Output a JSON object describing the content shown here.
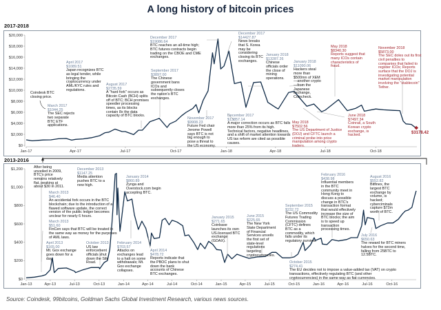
{
  "title": "A long history of bitcoin prices",
  "source": "Source: Coindesk, 99bitcoins, Goldman Sachs Global Investment Research, various news sources.",
  "colors": {
    "line": "#0f2a47",
    "annotation_title": "#6a7e99",
    "annotation_red": "#a3262e",
    "end_marker": "#a3262e"
  },
  "chart_data": [
    {
      "type": "line",
      "title": "2017-2018",
      "series_label": "Coindesk BTC closing price.",
      "ylim": [
        0,
        20000
      ],
      "yticks": [
        "$0",
        "$2,000",
        "$4,000",
        "$6,000",
        "$8,000",
        "$10,000",
        "$12,000",
        "$14,000",
        "$16,000",
        "$18,000",
        "$20,000"
      ],
      "ytick_values": [
        0,
        2000,
        4000,
        6000,
        8000,
        10000,
        12000,
        14000,
        16000,
        18000,
        20000
      ],
      "xticks": [
        "Jan-17",
        "Apr-17",
        "Jul-17",
        "Oct-17",
        "Jan-18",
        "Apr-18",
        "Jul-18",
        "Oct-18"
      ],
      "xtick_dates": [
        "2017-01-01",
        "2017-04-01",
        "2017-07-01",
        "2017-10-01",
        "2018-01-01",
        "2018-04-01",
        "2018-07-01",
        "2018-10-01"
      ],
      "xlim": [
        "2017-01-01",
        "2018-12-15"
      ],
      "grid": false,
      "end_label": "$3178.42",
      "points": [
        [
          "2017-01-01",
          998
        ],
        [
          "2017-01-12",
          820
        ],
        [
          "2017-02-01",
          970
        ],
        [
          "2017-02-15",
          1000
        ],
        [
          "2017-03-01",
          1200
        ],
        [
          "2017-03-15",
          1250
        ],
        [
          "2017-03-25",
          950
        ],
        [
          "2017-04-01",
          1090
        ],
        [
          "2017-04-15",
          1180
        ],
        [
          "2017-05-01",
          1400
        ],
        [
          "2017-05-15",
          1750
        ],
        [
          "2017-05-25",
          2300
        ],
        [
          "2017-06-01",
          2400
        ],
        [
          "2017-06-12",
          2950
        ],
        [
          "2017-06-25",
          2500
        ],
        [
          "2017-07-01",
          2500
        ],
        [
          "2017-07-16",
          1950
        ],
        [
          "2017-07-25",
          2750
        ],
        [
          "2017-08-01",
          2750
        ],
        [
          "2017-08-15",
          4300
        ],
        [
          "2017-09-01",
          4900
        ],
        [
          "2017-09-15",
          3250
        ],
        [
          "2017-09-20",
          3900
        ],
        [
          "2017-10-01",
          4400
        ],
        [
          "2017-10-12",
          5400
        ],
        [
          "2017-10-20",
          6000
        ],
        [
          "2017-11-01",
          6700
        ],
        [
          "2017-11-07",
          7400
        ],
        [
          "2017-11-12",
          5900
        ],
        [
          "2017-11-20",
          8200
        ],
        [
          "2017-11-29",
          9900
        ],
        [
          "2017-12-07",
          16800
        ],
        [
          "2017-12-10",
          14800
        ],
        [
          "2017-12-17",
          19300
        ],
        [
          "2017-12-22",
          13857
        ],
        [
          "2017-12-28",
          14400
        ],
        [
          "2018-01-06",
          17100
        ],
        [
          "2018-01-16",
          11200
        ],
        [
          "2018-01-28",
          11500
        ],
        [
          "2018-02-06",
          6900
        ],
        [
          "2018-02-20",
          11400
        ],
        [
          "2018-03-05",
          11500
        ],
        [
          "2018-03-18",
          7800
        ],
        [
          "2018-04-01",
          6900
        ],
        [
          "2018-04-06",
          6600
        ],
        [
          "2018-04-25",
          9600
        ],
        [
          "2018-05-05",
          9800
        ],
        [
          "2018-05-15",
          8600
        ],
        [
          "2018-05-28",
          7100
        ],
        [
          "2018-06-10",
          7500
        ],
        [
          "2018-06-24",
          6100
        ],
        [
          "2018-07-01",
          6400
        ],
        [
          "2018-07-25",
          8300
        ],
        [
          "2018-08-10",
          6300
        ],
        [
          "2018-08-25",
          6700
        ],
        [
          "2018-09-05",
          7300
        ],
        [
          "2018-09-10",
          6200
        ],
        [
          "2018-10-01",
          6600
        ],
        [
          "2018-10-15",
          6450
        ],
        [
          "2018-11-01",
          6350
        ],
        [
          "2018-11-14",
          6300
        ],
        [
          "2018-11-20",
          4400
        ],
        [
          "2018-11-25",
          3900
        ],
        [
          "2018-12-05",
          3800
        ],
        [
          "2018-12-10",
          3400
        ],
        [
          "2018-12-14",
          3178.42
        ]
      ],
      "annotations": [
        {
          "title": "March  2017",
          "price": "$1044.25",
          "text": "The SEC rejects two separate BTC ETF applications."
        },
        {
          "title": "April 2017",
          "price": "$1089.51",
          "text": "Japan recognizes BTC as legal tender, while bringing the cryptocurrency under AML/KYC rules and regulations."
        },
        {
          "title": "August 2017",
          "price": "$2735.59",
          "text": "A \"hard fork\" occurs as Bitcoin Cash (BCH) splits off of BTC; BCH promises speedier processing times, as its blocks contain 8x the data capacity of BTC blocks."
        },
        {
          "title": "September 2017",
          "price": "$3897.00",
          "text": "The Chinese government bans  ICOs and subsequently closes the nation's BTC exchanges."
        },
        {
          "title": "November 2017",
          "price": "$9908.23",
          "text": "Future Fed chair Jerome Powell says BTC is not big enough to pose a threat to the US economy."
        },
        {
          "title": "December 2017",
          "price": "$19086.64",
          "text": "BTC reaches an all-time high; BTC futures contracts begin trading on the CBOE and CME exchanges."
        },
        {
          "title": "December 2017",
          "price": "$14427.87",
          "text": "News breaks that S. Korea may be considering closing its BTC exchanges."
        },
        {
          "title": "December 2017",
          "price": "$13857.14",
          "text": "A major correction occurs as BTC falls more than 25% from its high. Technical factors, negative headlines, and a shift of market attention towards US tax reform are cited as possible causes."
        },
        {
          "title": "January 2018",
          "price": "$13287.26",
          "text": "Chinese officials order the close of mining operations."
        },
        {
          "title": "January 2018",
          "price": "$11090.06",
          "text": "Hackers steal more than $500mn of XEM—another crypto—from the Japanese exchange, Coincheck."
        },
        {
          "title": "May 2018",
          "price": "$8340.30",
          "text": "Reports suggest that many ICOs contain characteristics of fraud.",
          "red": true
        },
        {
          "title": "May 2018",
          "price": "$7502.56",
          "text": "The US Department of Justice (DOJ) and CFTC launch a criminal probe into price manipulation among crypto traders.",
          "red": true
        },
        {
          "title": "June 2018",
          "price": "$7497.34",
          "text": "Coinrail, a South Korean crypto exchange, is hacked.",
          "red": true
        },
        {
          "title": "November 2018",
          "price": "$5873.00",
          "text": "The SEC doles out its first civil penalties to companies that failed to register ICOs; Reports surface that the DOJ is investigating potential market manipulation involving the \"stablecoin\" Tether.",
          "red": true
        }
      ]
    },
    {
      "type": "line",
      "title": "2013-2016",
      "ylim": [
        0,
        1200
      ],
      "yticks": [
        "$0",
        "$200",
        "$400",
        "$600",
        "$800",
        "$1,000",
        "$1,200"
      ],
      "ytick_values": [
        0,
        200,
        400,
        600,
        800,
        1000,
        1200
      ],
      "xticks": [
        "Jan-13",
        "Apr-13",
        "Jul-13",
        "Oct-13",
        "Jan-14",
        "Apr-14",
        "Jul-14",
        "Oct-14",
        "Jan-15",
        "Apr-15",
        "Jul-15",
        "Oct-15",
        "Jan-16",
        "Apr-16",
        "Jul-16",
        "Oct-16"
      ],
      "xtick_dates": [
        "2013-01-01",
        "2013-04-01",
        "2013-07-01",
        "2013-10-01",
        "2014-01-01",
        "2014-04-01",
        "2014-07-01",
        "2014-10-01",
        "2015-01-01",
        "2015-04-01",
        "2015-07-01",
        "2015-10-01",
        "2016-01-01",
        "2016-04-01",
        "2016-07-01",
        "2016-10-01"
      ],
      "xlim": [
        "2013-01-01",
        "2016-12-31"
      ],
      "grid": false,
      "points": [
        [
          "2013-01-01",
          13
        ],
        [
          "2013-02-01",
          20
        ],
        [
          "2013-03-01",
          34
        ],
        [
          "2013-03-15",
          47
        ],
        [
          "2013-04-01",
          100
        ],
        [
          "2013-04-09",
          230
        ],
        [
          "2013-04-16",
          70
        ],
        [
          "2013-05-01",
          115
        ],
        [
          "2013-06-01",
          120
        ],
        [
          "2013-07-01",
          85
        ],
        [
          "2013-07-05",
          70
        ],
        [
          "2013-08-01",
          100
        ],
        [
          "2013-09-01",
          125
        ],
        [
          "2013-10-01",
          125
        ],
        [
          "2013-10-03",
          110
        ],
        [
          "2013-10-20",
          180
        ],
        [
          "2013-11-01",
          200
        ],
        [
          "2013-11-10",
          320
        ],
        [
          "2013-11-18",
          600
        ],
        [
          "2013-11-30",
          1140
        ],
        [
          "2013-12-05",
          1150
        ],
        [
          "2013-12-07",
          700
        ],
        [
          "2013-12-10",
          990
        ],
        [
          "2013-12-18",
          520
        ],
        [
          "2013-12-25",
          680
        ],
        [
          "2014-01-05",
          950
        ],
        [
          "2014-01-15",
          850
        ],
        [
          "2014-02-01",
          870
        ],
        [
          "2014-02-10",
          700
        ],
        [
          "2014-02-25",
          540
        ],
        [
          "2014-03-10",
          630
        ],
        [
          "2014-03-25",
          550
        ],
        [
          "2014-04-10",
          360
        ],
        [
          "2014-04-15",
          500
        ],
        [
          "2014-04-25",
          440
        ],
        [
          "2014-05-15",
          450
        ],
        [
          "2014-05-25",
          640
        ],
        [
          "2014-06-05",
          660
        ],
        [
          "2014-06-20",
          590
        ],
        [
          "2014-07-01",
          640
        ],
        [
          "2014-07-20",
          620
        ],
        [
          "2014-08-10",
          580
        ],
        [
          "2014-08-18",
          470
        ],
        [
          "2014-09-01",
          480
        ],
        [
          "2014-09-20",
          400
        ],
        [
          "2014-10-05",
          320
        ],
        [
          "2014-10-15",
          390
        ],
        [
          "2014-11-01",
          330
        ],
        [
          "2014-11-15",
          410
        ],
        [
          "2014-12-01",
          375
        ],
        [
          "2014-12-15",
          320
        ],
        [
          "2015-01-01",
          315
        ],
        [
          "2015-01-14",
          180
        ],
        [
          "2015-01-25",
          270
        ],
        [
          "2015-02-10",
          220
        ],
        [
          "2015-03-01",
          270
        ],
        [
          "2015-03-20",
          250
        ],
        [
          "2015-04-15",
          225
        ],
        [
          "2015-05-15",
          240
        ],
        [
          "2015-06-15",
          245
        ],
        [
          "2015-07-10",
          290
        ],
        [
          "2015-07-25",
          290
        ],
        [
          "2015-08-18",
          230
        ],
        [
          "2015-09-15",
          230
        ],
        [
          "2015-10-01",
          240
        ],
        [
          "2015-10-15",
          270
        ],
        [
          "2015-11-04",
          400
        ],
        [
          "2015-11-11",
          310
        ],
        [
          "2015-12-01",
          370
        ],
        [
          "2015-12-15",
          450
        ],
        [
          "2015-12-20",
          420
        ],
        [
          "2016-01-10",
          445
        ],
        [
          "2016-01-15",
          380
        ],
        [
          "2016-02-01",
          375
        ],
        [
          "2016-02-20",
          430
        ],
        [
          "2016-03-15",
          415
        ],
        [
          "2016-04-15",
          430
        ],
        [
          "2016-05-01",
          450
        ],
        [
          "2016-05-25",
          450
        ],
        [
          "2016-06-10",
          580
        ],
        [
          "2016-06-17",
          750
        ],
        [
          "2016-06-23",
          590
        ],
        [
          "2016-07-01",
          670
        ],
        [
          "2016-07-25",
          655
        ],
        [
          "2016-08-02",
          550
        ],
        [
          "2016-08-20",
          580
        ],
        [
          "2016-09-15",
          610
        ],
        [
          "2016-10-05",
          610
        ],
        [
          "2016-10-25",
          650
        ],
        [
          "2016-11-10",
          710
        ],
        [
          "2016-11-20",
          740
        ],
        [
          "2016-12-01",
          750
        ],
        [
          "2016-12-15",
          780
        ],
        [
          "2016-12-25",
          900
        ],
        [
          "2016-12-31",
          960
        ]
      ],
      "annotations": [
        {
          "title": "",
          "price": "",
          "text": "After being unveiled in 2009, BTC's price remains relatively flat, peaking at about $30 in 2011."
        },
        {
          "title": "December 2013",
          "price": "$1147.25",
          "text": "Media attention pushes BTC to a new high."
        },
        {
          "title": "January  2014",
          "price": "$860.89",
          "text": "Zynga and Overstock.com begin accepting BTC."
        },
        {
          "title": "March 2013",
          "price": "$46.40",
          "text": "An accidental fork occurs in the BTC blockchain; due to the introduction of a flawed software update, the correct version of the public ledger becomes unclear for nearly 6 hours."
        },
        {
          "title": "March 2013",
          "price": "$51.60",
          "text": "FinCen says that BTC will be treated in the same way as money for the purposes of AML laws."
        },
        {
          "title": "April 2013",
          "price": "$165.00",
          "text": "Mt. Gox exchange goes down for a day."
        },
        {
          "title": "October 2013",
          "price": "",
          "text": "US law enforcement officials shut down the Silk Road."
        },
        {
          "title": "February 2014",
          "price": "$703.57",
          "text": "Attacks on exchanges lead to a halt on some withdrawals; Mt. Gox exchange collapses."
        },
        {
          "title": "April 2014",
          "price": "$478.72",
          "text": "Reports indicate that the PBOC plans to shut down the bank accounts of Chinese BTC exchanges."
        },
        {
          "title": "January 2015",
          "price": "$271.65",
          "text": "Coinbase launches its own US-licensed BTC exchange (GDAX)."
        },
        {
          "title": "June 2015",
          "price": "$225.65",
          "text": "The New York State Department of Financial Services unveils the first set of state-level regulations targeting cryptocurrencies."
        },
        {
          "title": "September 2015",
          "price": "$232.72",
          "text": "The US Commodity Futures Trading Commission (CFTC) defines BTC as a commodity, which falls under its regulatory purview."
        },
        {
          "title": "October 2015",
          "price": "$274.41",
          "text": "The EU decides not to impose a value-added tax (VAT) on crypto transactions, effectively regulating BTC (and other cryptocurrencies) in the same way as fiat currencies."
        },
        {
          "title": "February 2016",
          "price": "$438.98",
          "text": "Influential members in the BTC community meet in Hong Kong to discuss a possible change in BTC's transaction format that would effectively increase the size of BTC blocks; the aim is to speed up transaction processing times."
        },
        {
          "title": "August 2016",
          "price": "$552.82",
          "text": "Bitfinex, the largest BTC exchange by volume, is hacked; cyberciminals capture $72m worth of BTC."
        },
        {
          "title": "July 2016",
          "price": "$650.63",
          "text": "The reward for BTC miners halves for the second time, falling from 25BTC to 12.5BTC."
        }
      ]
    }
  ]
}
